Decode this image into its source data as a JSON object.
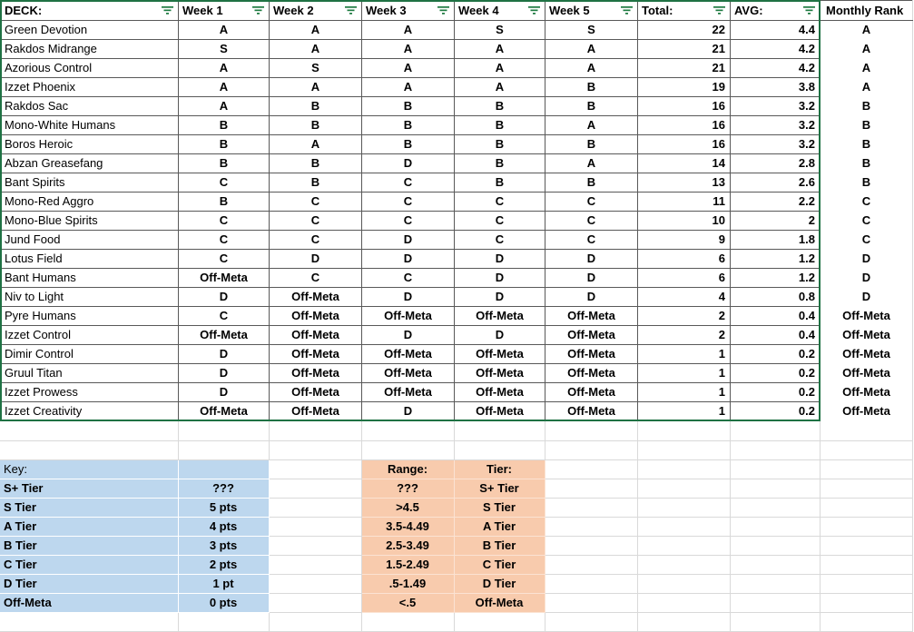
{
  "table": {
    "columns": [
      {
        "label": "DECK:",
        "filter": true
      },
      {
        "label": "Week 1",
        "filter": true
      },
      {
        "label": "Week 2",
        "filter": true
      },
      {
        "label": "Week 3",
        "filter": true
      },
      {
        "label": "Week 4",
        "filter": true
      },
      {
        "label": "Week 5",
        "filter": true
      },
      {
        "label": "Total:",
        "filter": true
      },
      {
        "label": "AVG:",
        "filter": true
      },
      {
        "label": "Monthly Rank",
        "filter": false
      }
    ],
    "rows": [
      {
        "deck": "Green Devotion",
        "weeks": [
          "A",
          "A",
          "A",
          "S",
          "S"
        ],
        "total": "22",
        "avg": "4.4",
        "rank": "A"
      },
      {
        "deck": "Rakdos Midrange",
        "weeks": [
          "S",
          "A",
          "A",
          "A",
          "A"
        ],
        "total": "21",
        "avg": "4.2",
        "rank": "A"
      },
      {
        "deck": "Azorious Control",
        "weeks": [
          "A",
          "S",
          "A",
          "A",
          "A"
        ],
        "total": "21",
        "avg": "4.2",
        "rank": "A"
      },
      {
        "deck": "Izzet Phoenix",
        "weeks": [
          "A",
          "A",
          "A",
          "A",
          "B"
        ],
        "total": "19",
        "avg": "3.8",
        "rank": "A"
      },
      {
        "deck": "Rakdos Sac",
        "weeks": [
          "A",
          "B",
          "B",
          "B",
          "B"
        ],
        "total": "16",
        "avg": "3.2",
        "rank": "B"
      },
      {
        "deck": "Mono-White Humans",
        "weeks": [
          "B",
          "B",
          "B",
          "B",
          "A"
        ],
        "total": "16",
        "avg": "3.2",
        "rank": "B"
      },
      {
        "deck": "Boros Heroic",
        "weeks": [
          "B",
          "A",
          "B",
          "B",
          "B"
        ],
        "total": "16",
        "avg": "3.2",
        "rank": "B"
      },
      {
        "deck": "Abzan Greasefang",
        "weeks": [
          "B",
          "B",
          "D",
          "B",
          "A"
        ],
        "total": "14",
        "avg": "2.8",
        "rank": "B"
      },
      {
        "deck": "Bant Spirits",
        "weeks": [
          "C",
          "B",
          "C",
          "B",
          "B"
        ],
        "total": "13",
        "avg": "2.6",
        "rank": "B"
      },
      {
        "deck": "Mono-Red Aggro",
        "weeks": [
          "B",
          "C",
          "C",
          "C",
          "C"
        ],
        "total": "11",
        "avg": "2.2",
        "rank": "C"
      },
      {
        "deck": "Mono-Blue Spirits",
        "weeks": [
          "C",
          "C",
          "C",
          "C",
          "C"
        ],
        "total": "10",
        "avg": "2",
        "rank": "C"
      },
      {
        "deck": "Jund Food",
        "weeks": [
          "C",
          "C",
          "D",
          "C",
          "C"
        ],
        "total": "9",
        "avg": "1.8",
        "rank": "C"
      },
      {
        "deck": "Lotus Field",
        "weeks": [
          "C",
          "D",
          "D",
          "D",
          "D"
        ],
        "total": "6",
        "avg": "1.2",
        "rank": "D"
      },
      {
        "deck": "Bant Humans",
        "weeks": [
          "Off-Meta",
          "C",
          "C",
          "D",
          "D"
        ],
        "total": "6",
        "avg": "1.2",
        "rank": "D"
      },
      {
        "deck": "Niv to Light",
        "weeks": [
          "D",
          "Off-Meta",
          "D",
          "D",
          "D"
        ],
        "total": "4",
        "avg": "0.8",
        "rank": "D"
      },
      {
        "deck": "Pyre Humans",
        "weeks": [
          "C",
          "Off-Meta",
          "Off-Meta",
          "Off-Meta",
          "Off-Meta"
        ],
        "total": "2",
        "avg": "0.4",
        "rank": "Off-Meta"
      },
      {
        "deck": "Izzet Control",
        "weeks": [
          "Off-Meta",
          "Off-Meta",
          "D",
          "D",
          "Off-Meta"
        ],
        "total": "2",
        "avg": "0.4",
        "rank": "Off-Meta"
      },
      {
        "deck": "Dimir Control",
        "weeks": [
          "D",
          "Off-Meta",
          "Off-Meta",
          "Off-Meta",
          "Off-Meta"
        ],
        "total": "1",
        "avg": "0.2",
        "rank": "Off-Meta"
      },
      {
        "deck": "Gruul Titan",
        "weeks": [
          "D",
          "Off-Meta",
          "Off-Meta",
          "Off-Meta",
          "Off-Meta"
        ],
        "total": "1",
        "avg": "0.2",
        "rank": "Off-Meta"
      },
      {
        "deck": "Izzet Prowess",
        "weeks": [
          "D",
          "Off-Meta",
          "Off-Meta",
          "Off-Meta",
          "Off-Meta"
        ],
        "total": "1",
        "avg": "0.2",
        "rank": "Off-Meta"
      },
      {
        "deck": "Izzet Creativity",
        "weeks": [
          "Off-Meta",
          "Off-Meta",
          "D",
          "Off-Meta",
          "Off-Meta"
        ],
        "total": "1",
        "avg": "0.2",
        "rank": "Off-Meta"
      }
    ]
  },
  "key": {
    "rows": [
      [
        "Key:",
        ""
      ],
      [
        "S+ Tier",
        "???"
      ],
      [
        "S Tier",
        "5 pts"
      ],
      [
        "A Tier",
        "4 pts"
      ],
      [
        "B Tier",
        "3 pts"
      ],
      [
        "C Tier",
        "2 pts"
      ],
      [
        "D Tier",
        "1 pt"
      ],
      [
        "Off-Meta",
        "0 pts"
      ]
    ]
  },
  "ranges": {
    "rows": [
      [
        "Range:",
        "Tier:"
      ],
      [
        "???",
        "S+ Tier"
      ],
      [
        ">4.5",
        "S Tier"
      ],
      [
        "3.5-4.49",
        "A Tier"
      ],
      [
        "2.5-3.49",
        "B Tier"
      ],
      [
        "1.5-2.49",
        "C Tier"
      ],
      [
        ".5-1.49",
        "D Tier"
      ],
      [
        "<.5",
        "Off-Meta"
      ]
    ]
  },
  "colors": {
    "border_green": "#1F7244",
    "grid_dark": "#595959",
    "grid_light": "#D9D9D9",
    "key_blue": "#BDD7EE",
    "range_orange": "#F8CBAD",
    "filter_green": "#1E7B41"
  }
}
